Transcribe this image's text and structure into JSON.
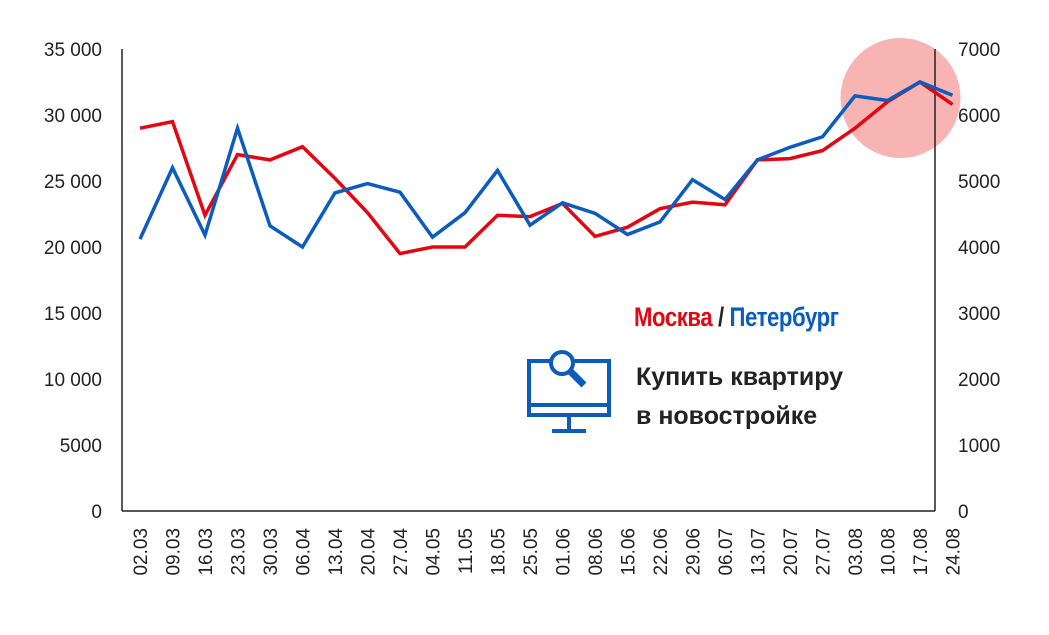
{
  "chart_data": {
    "type": "line",
    "title": "",
    "categories": [
      "02.03",
      "09.03",
      "16.03",
      "23.03",
      "30.03",
      "06.04",
      "13.04",
      "20.04",
      "27.04",
      "04.05",
      "11.05",
      "18.05",
      "25.05",
      "01.06",
      "08.06",
      "15.06",
      "22.06",
      "29.06",
      "06.07",
      "13.07",
      "20.07",
      "27.07",
      "03.08",
      "10.08",
      "17.08",
      "24.08"
    ],
    "y_left": {
      "ylim": [
        0,
        35000
      ],
      "ticks": [
        "0",
        "5000",
        "10 000",
        "15 000",
        "20 000",
        "25 000",
        "30 000",
        "35 000"
      ],
      "tick_values": [
        0,
        5000,
        10000,
        15000,
        20000,
        25000,
        30000,
        35000
      ]
    },
    "y_right": {
      "ylim": [
        0,
        7000
      ],
      "ticks": [
        "0",
        "1000",
        "2000",
        "3000",
        "4000",
        "5000",
        "6000",
        "7000"
      ],
      "tick_values": [
        0,
        1000,
        2000,
        3000,
        4000,
        5000,
        6000,
        7000
      ]
    },
    "series": [
      {
        "name": "Москва",
        "axis": "left",
        "color": "#e30613",
        "values": [
          29000,
          29500,
          22400,
          27000,
          26600,
          27600,
          25200,
          22600,
          19500,
          20000,
          20000,
          22400,
          22300,
          23300,
          20800,
          21500,
          22900,
          23400,
          23200,
          26600,
          26700,
          27300,
          29000,
          31000,
          32500,
          30800
        ]
      },
      {
        "name": "Петербург",
        "axis": "right",
        "color": "#0b5cbd",
        "values": [
          4120,
          5200,
          4180,
          5800,
          4320,
          4000,
          4820,
          4960,
          4830,
          4150,
          4520,
          5160,
          4330,
          4670,
          4510,
          4190,
          4380,
          5020,
          4720,
          5320,
          5510,
          5670,
          6290,
          6220,
          6500,
          6300
        ]
      }
    ],
    "highlight_color": "#f8b3b3",
    "grid": false,
    "legend": "right"
  },
  "legend": {
    "moscow": "Москва",
    "separator": " / ",
    "petersburg": "Петербург",
    "moscow_color": "#e30613",
    "petersburg_color": "#0b5cbd"
  },
  "promo": {
    "icon": "computer-search-icon",
    "line1": "Купить квартиру",
    "line2": "в новостройке"
  }
}
